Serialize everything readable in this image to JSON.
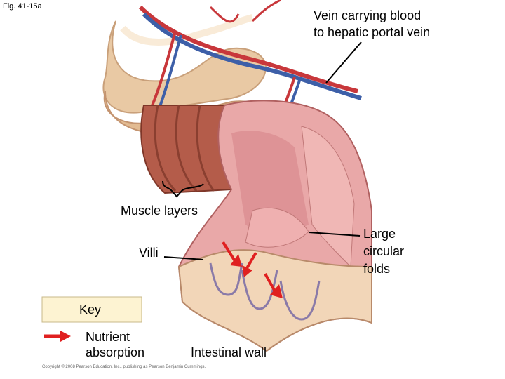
{
  "figure_label": "Fig. 41-15a",
  "labels": {
    "vein": [
      "Vein carrying blood",
      "to hepatic portal vein"
    ],
    "muscle_layers": "Muscle layers",
    "villi": "Villi",
    "folds": [
      "Large",
      "circular",
      "folds"
    ],
    "intestinal_wall": "Intestinal wall"
  },
  "key": {
    "title": "Key",
    "items": [
      {
        "label": [
          "Nutrient",
          "absorption"
        ]
      }
    ]
  },
  "copyright": "Copyright © 2008 Pearson Education, Inc., publishing as Pearson Benjamin Cummings."
}
